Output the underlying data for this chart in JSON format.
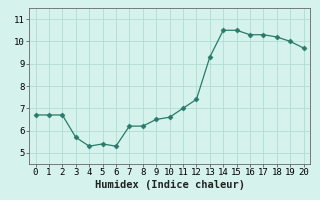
{
  "x": [
    0,
    1,
    2,
    3,
    4,
    5,
    6,
    7,
    8,
    9,
    10,
    11,
    12,
    13,
    14,
    15,
    16,
    17,
    18,
    19,
    20
  ],
  "y": [
    6.7,
    6.7,
    6.7,
    5.7,
    5.3,
    5.4,
    5.3,
    6.2,
    6.2,
    6.5,
    6.6,
    7.0,
    7.4,
    9.3,
    10.5,
    10.5,
    10.3,
    10.3,
    10.2,
    10.0,
    9.7
  ],
  "line_color": "#2a7a6b",
  "marker": "D",
  "marker_size": 2.5,
  "bg_color": "#d5f2ec",
  "grid_color": "#aeddd5",
  "xlabel": "Humidex (Indice chaleur)",
  "ylim": [
    4.5,
    11.5
  ],
  "xlim": [
    -0.5,
    20.5
  ],
  "yticks": [
    5,
    6,
    7,
    8,
    9,
    10,
    11
  ],
  "xticks": [
    0,
    1,
    2,
    3,
    4,
    5,
    6,
    7,
    8,
    9,
    10,
    11,
    12,
    13,
    14,
    15,
    16,
    17,
    18,
    19,
    20
  ],
  "tick_fontsize": 6.5,
  "xlabel_fontsize": 7.5,
  "xlabel_fontweight": "bold",
  "spine_color": "#666666",
  "tick_color": "#444444"
}
